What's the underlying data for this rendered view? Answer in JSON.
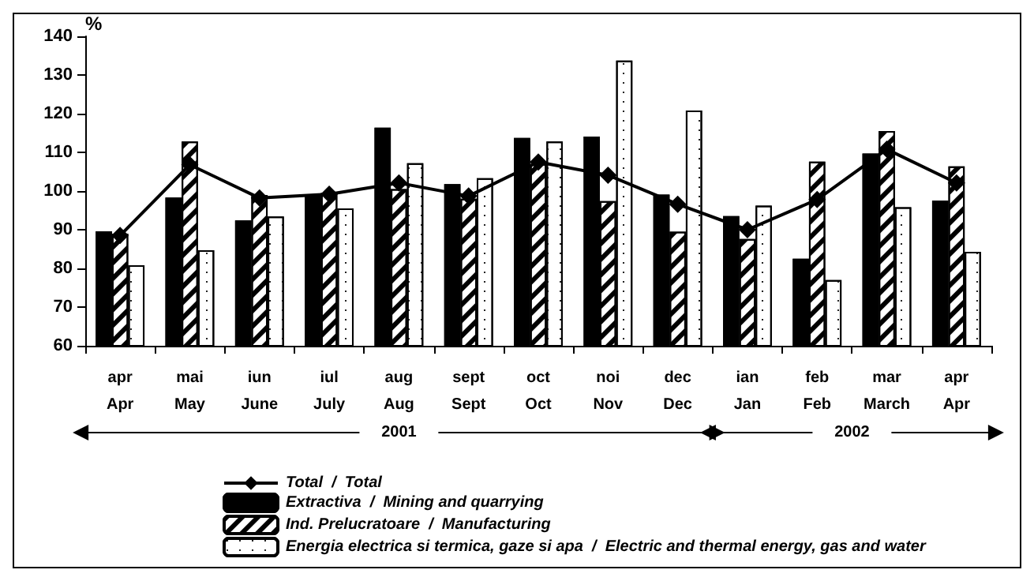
{
  "chart_data": {
    "type": "bar",
    "ylabel": "%",
    "categories": [
      "apr\nApr",
      "mai\nMay",
      "iun\nJune",
      "iul\nJuly",
      "aug\nAug",
      "sept\nSept",
      "oct\nOct",
      "noi\nNov",
      "dec\nDec",
      "ian\nJan",
      "feb\nFeb",
      "mar\nMarch",
      "apr\nApr"
    ],
    "series": [
      {
        "name": "Total  /  Total",
        "type": "line",
        "color": "#000000",
        "marker": "diamond",
        "values": [
          88.5,
          106.8,
          98.2,
          99.2,
          102.1,
          98.7,
          107.5,
          104.1,
          96.6,
          90.0,
          97.8,
          110.8,
          102.1
        ]
      },
      {
        "name": "Extractiva  /  Mining and quarrying",
        "color": "#000000",
        "values": [
          89.6,
          98.3,
          92.4,
          99.0,
          116.4,
          101.8,
          113.7,
          114.1,
          99.1,
          93.5,
          82.5,
          109.7,
          97.5
        ]
      },
      {
        "name": "Ind. Prelucratoare  /  Manufacturing",
        "color": "#ffffff",
        "values": [
          89.0,
          112.8,
          99.0,
          99.6,
          100.5,
          98.0,
          107.0,
          97.4,
          89.5,
          87.6,
          107.6,
          115.5,
          106.4
        ]
      },
      {
        "name": "Energia electrica si termica, gaze si apa  /  Electric and thermal energy, gas and water",
        "color": "#ffffff",
        "values": [
          80.8,
          84.7,
          93.4,
          95.5,
          107.2,
          103.3,
          112.8,
          133.7,
          120.8,
          96.2,
          77.0,
          95.8,
          84.3
        ]
      }
    ],
    "annotations": [
      "2001",
      "2002"
    ],
    "ylim": [
      60,
      140
    ],
    "yticks": [
      60,
      70,
      80,
      90,
      100,
      110,
      120,
      130,
      140
    ],
    "grid": false,
    "legend": "bottom left"
  }
}
